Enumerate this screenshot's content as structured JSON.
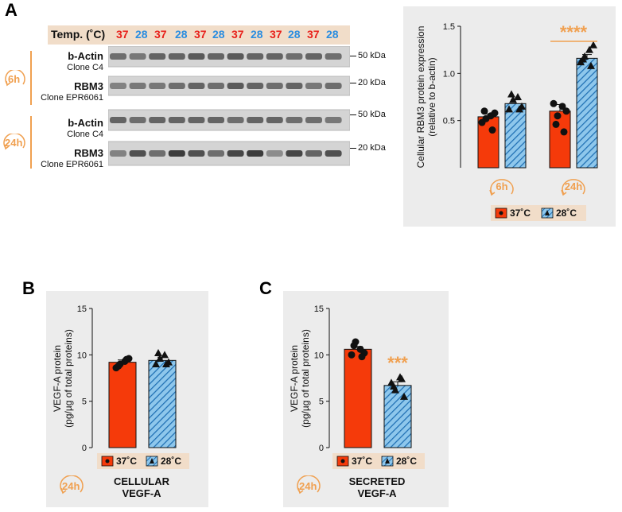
{
  "panels": {
    "a": "A",
    "b": "B",
    "c": "C"
  },
  "colors": {
    "red": "#f53a0a",
    "blue_fill": "#8ec7ec",
    "blue_stripe": "#1f6fb3",
    "orange": "#f0a050",
    "temp_red": "#e8201a",
    "temp_blue": "#2a8de0",
    "box_bg": "#ececec",
    "legend_bg": "#f1ddc9"
  },
  "blot": {
    "header_label": "Temp. (˚C)",
    "lanes": [
      "37",
      "28",
      "37",
      "28",
      "37",
      "28",
      "37",
      "28",
      "37",
      "28",
      "37",
      "28"
    ],
    "rows": [
      {
        "protein": "b-Actin",
        "clone": "Clone C4",
        "kda": "50 kDa"
      },
      {
        "protein": "RBM3",
        "clone": "Clone EPR6061",
        "kda": "20 kDa"
      },
      {
        "protein": "b-Actin",
        "clone": "Clone C4",
        "kda": "50 kDa"
      },
      {
        "protein": "RBM3",
        "clone": "Clone EPR6061",
        "kda": "20 kDa"
      }
    ],
    "times": [
      "6h",
      "24h"
    ]
  },
  "legend": {
    "t37": "37˚C",
    "t28": "28˚C"
  },
  "captions": {
    "b": {
      "line1": "CELLULAR",
      "line2": "VEGF-A",
      "time": "24h"
    },
    "c": {
      "line1": "SECRETED",
      "line2": "VEGF-A",
      "time": "24h"
    }
  },
  "chart_data": [
    {
      "id": "A",
      "type": "bar",
      "ylabel": "Cellular RBM3 protein expression (relative to b-actin)",
      "ylim": [
        0,
        1.5
      ],
      "yticks": [
        "0.5",
        "1.0",
        "1.5"
      ],
      "groups": [
        "6h",
        "24h"
      ],
      "series": [
        {
          "name": "37˚C",
          "values": [
            0.54,
            0.6
          ],
          "sem": [
            0.03,
            0.07
          ],
          "points": [
            [
              0.48,
              0.52,
              0.55,
              0.58,
              0.6,
              0.4
            ],
            [
              0.68,
              0.55,
              0.65,
              0.6,
              0.46,
              0.38
            ]
          ]
        },
        {
          "name": "28˚C",
          "values": [
            0.68,
            1.16
          ],
          "sem": [
            0.04,
            0.04
          ],
          "points": [
            [
              0.62,
              0.72,
              0.75,
              0.65,
              0.78,
              0.62
            ],
            [
              1.12,
              1.18,
              1.25,
              1.3,
              1.15,
              1.08
            ]
          ]
        }
      ],
      "annotation": {
        "text": "****",
        "group": 1
      }
    },
    {
      "id": "B",
      "type": "bar",
      "ylabel": "VEGF-A protein (pg/µg of total proteins)",
      "ylim": [
        0,
        15
      ],
      "yticks": [
        "0",
        "5",
        "10",
        "15"
      ],
      "categories": [
        "37˚C",
        "28˚C"
      ],
      "values": [
        9.2,
        9.4
      ],
      "sem": [
        0.25,
        0.35
      ],
      "points": [
        [
          8.6,
          9.0,
          9.3,
          9.6,
          8.8,
          9.5
        ],
        [
          9.0,
          9.6,
          10.0,
          9.2,
          10.2,
          9.0
        ]
      ]
    },
    {
      "id": "C",
      "type": "bar",
      "ylabel": "VEGF-A protein (pg/µg of total proteins)",
      "ylim": [
        0,
        15
      ],
      "yticks": [
        "0",
        "5",
        "10",
        "15"
      ],
      "categories": [
        "37˚C",
        "28˚C"
      ],
      "values": [
        10.6,
        6.7
      ],
      "sem": [
        0.3,
        0.4
      ],
      "points": [
        [
          10.0,
          11.4,
          10.6,
          10.2,
          11.0,
          9.8
        ],
        [
          7.0,
          6.2,
          7.6,
          5.5,
          6.6,
          7.4
        ]
      ],
      "annotation": {
        "text": "***",
        "category": 1
      }
    }
  ]
}
